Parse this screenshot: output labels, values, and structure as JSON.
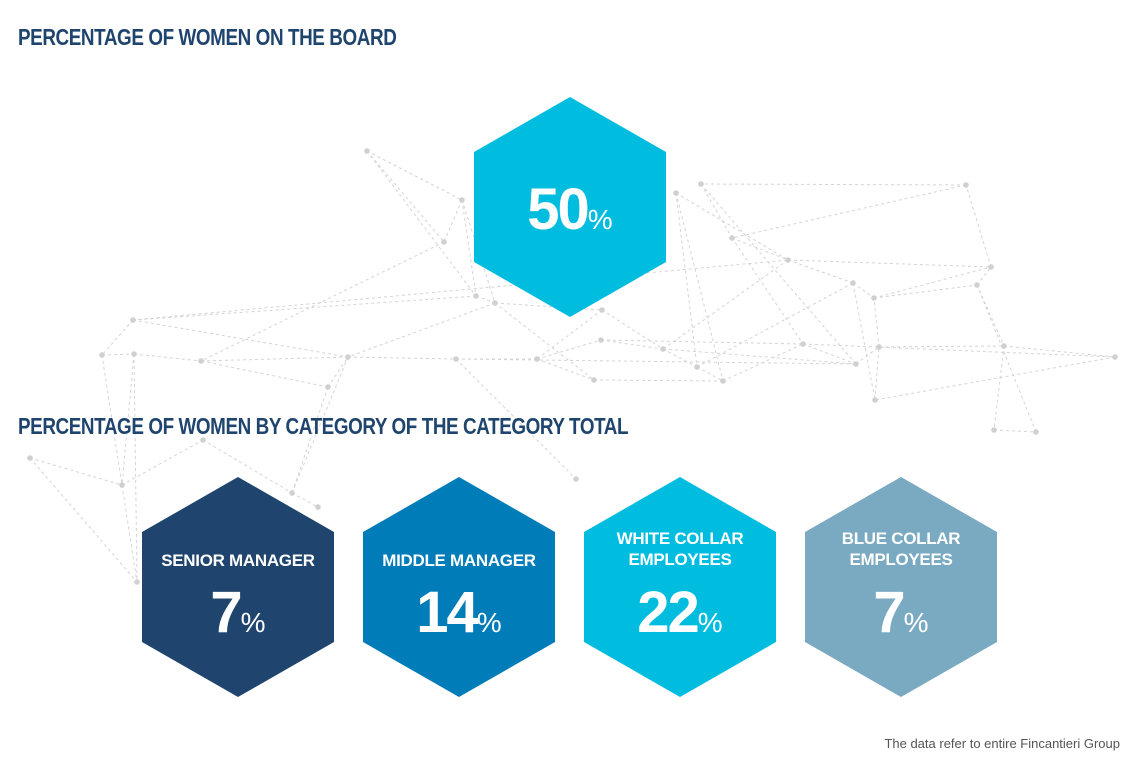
{
  "colors": {
    "title": "#1f456e",
    "network_line": "#d4d4d4",
    "network_dot": "#d0d0d0",
    "footnote": "#555555"
  },
  "board_title": "PERCENTAGE OF WOMEN ON THE BOARD",
  "category_title": "PERCENTAGE OF WOMEN BY CATEGORY OF THE CATEGORY TOTAL",
  "footnote": "The data refer to entire Fincantieri Group",
  "chart_data": [
    {
      "type": "table",
      "title": "PERCENTAGE OF WOMEN ON THE BOARD",
      "items": [
        {
          "label": "",
          "value": 50,
          "unit": "%",
          "color": "#00bde0"
        }
      ]
    },
    {
      "type": "table",
      "title": "PERCENTAGE OF WOMEN BY CATEGORY OF THE CATEGORY TOTAL",
      "items": [
        {
          "label": "SENIOR MANAGER",
          "value": 7,
          "unit": "%",
          "color": "#1f456e"
        },
        {
          "label": "MIDDLE MANAGER",
          "value": 14,
          "unit": "%",
          "color": "#007db8"
        },
        {
          "label": "WHITE COLLAR EMPLOYEES",
          "value": 22,
          "unit": "%",
          "color": "#00bde0"
        },
        {
          "label": "BLUE COLLAR EMPLOYEES",
          "value": 7,
          "unit": "%",
          "color": "#7aa9c2"
        }
      ]
    }
  ]
}
